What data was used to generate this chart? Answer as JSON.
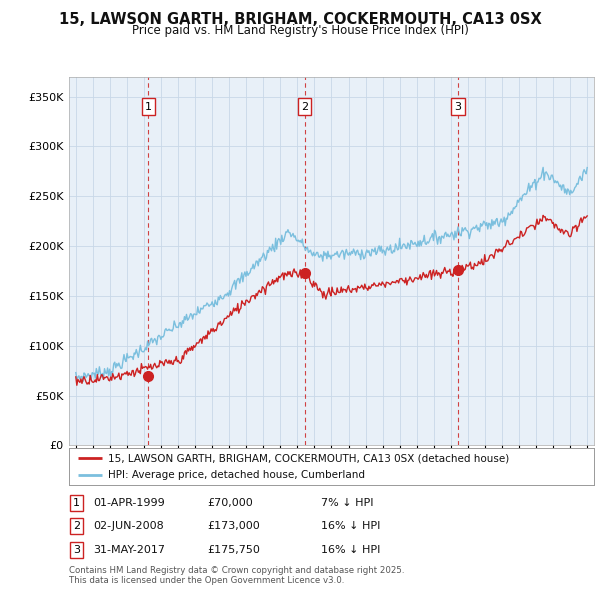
{
  "title": "15, LAWSON GARTH, BRIGHAM, COCKERMOUTH, CA13 0SX",
  "subtitle": "Price paid vs. HM Land Registry's House Price Index (HPI)",
  "ylim": [
    0,
    370000
  ],
  "xlim_start": 1994.6,
  "xlim_end": 2025.4,
  "sale_dates": [
    1999.25,
    2008.42,
    2017.42
  ],
  "sale_prices": [
    70000,
    173000,
    175750
  ],
  "sale_labels": [
    "1",
    "2",
    "3"
  ],
  "hpi_color": "#7bbfde",
  "price_color": "#cc2222",
  "vline_color": "#cc2222",
  "bg_chart_color": "#e8f0f8",
  "legend_label_price": "15, LAWSON GARTH, BRIGHAM, COCKERMOUTH, CA13 0SX (detached house)",
  "legend_label_hpi": "HPI: Average price, detached house, Cumberland",
  "table_rows": [
    [
      "1",
      "01-APR-1999",
      "£70,000",
      "7% ↓ HPI"
    ],
    [
      "2",
      "02-JUN-2008",
      "£173,000",
      "16% ↓ HPI"
    ],
    [
      "3",
      "31-MAY-2017",
      "£175,750",
      "16% ↓ HPI"
    ]
  ],
  "footer": "Contains HM Land Registry data © Crown copyright and database right 2025.\nThis data is licensed under the Open Government Licence v3.0.",
  "background_color": "#ffffff",
  "grid_color": "#c8d8e8"
}
